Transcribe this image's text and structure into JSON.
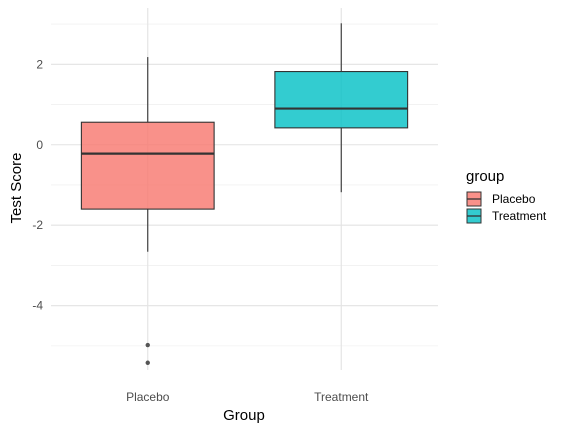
{
  "chart_data": {
    "type": "boxplot",
    "xlabel": "Group",
    "ylabel": "Test Score",
    "categories": [
      "Placebo",
      "Treatment"
    ],
    "ylim": [
      -5.6,
      3.4
    ],
    "yticks": [
      -4,
      -2,
      0,
      2
    ],
    "ytick_labels": [
      "-4",
      "-2",
      "0",
      "2"
    ],
    "grid": true,
    "legend": {
      "title": "group",
      "position": "right",
      "entries": [
        "Placebo",
        "Treatment"
      ]
    },
    "boxes": [
      {
        "name": "Placebo",
        "color": "#F8766D",
        "whisker_low": -2.66,
        "q1": -1.6,
        "median": -0.22,
        "q3": 0.56,
        "whisker_high": 2.18,
        "outliers": [
          -4.98,
          -5.42
        ]
      },
      {
        "name": "Treatment",
        "color": "#00BFC4",
        "whisker_low": -1.18,
        "q1": 0.42,
        "median": 0.9,
        "q3": 1.82,
        "whisker_high": 3.02,
        "outliers": []
      }
    ]
  }
}
